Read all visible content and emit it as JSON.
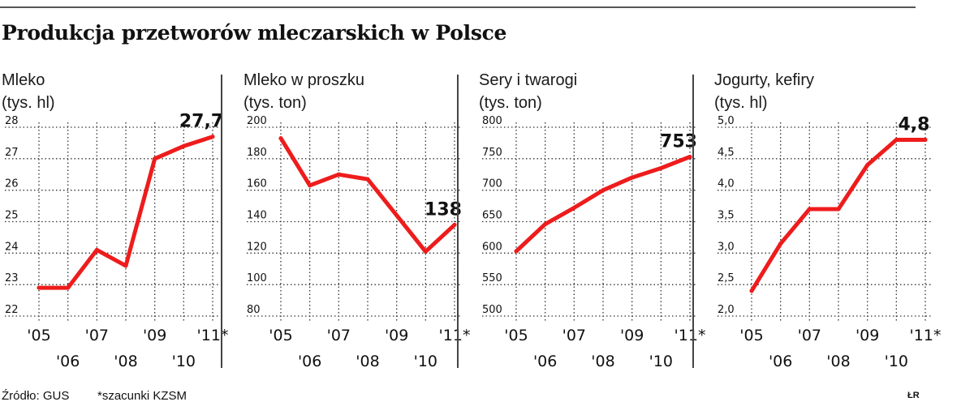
{
  "title": "Produkcja przetworów mleczarskich w Polsce",
  "footer": {
    "source": "Źródło: GUS",
    "note": "*szacunki KZSM",
    "credit": "ŁR"
  },
  "colors": {
    "line": "#ee1c1c",
    "text": "#111111",
    "grid": "#333333"
  },
  "chart_data": [
    {
      "type": "line",
      "title": "Mleko",
      "unit": "(tys. hl)",
      "x": [
        "'05",
        "'06",
        "'07",
        "'08",
        "'09",
        "'10",
        "'11*"
      ],
      "values": [
        22.9,
        22.9,
        24.1,
        23.6,
        27.0,
        27.4,
        27.7
      ],
      "ylim": [
        22,
        28
      ],
      "yticks": [
        "22",
        "23",
        "24",
        "25",
        "26",
        "27",
        "28"
      ],
      "value_label": "27,7",
      "grid": "dotted horizontal"
    },
    {
      "type": "line",
      "title": "Mleko w proszku",
      "unit": "(tys. ton)",
      "x": [
        "'05",
        "'06",
        "'07",
        "'08",
        "'09",
        "'10",
        "'11*"
      ],
      "values": [
        193,
        163,
        170,
        167,
        144,
        121,
        138
      ],
      "ylim": [
        80,
        200
      ],
      "yticks": [
        "80",
        "100",
        "120",
        "140",
        "160",
        "180",
        "200"
      ],
      "value_label": "138",
      "grid": "dotted horizontal"
    },
    {
      "type": "line",
      "title": "Sery i twarogi",
      "unit": "(tys. ton)",
      "x": [
        "'05",
        "'06",
        "'07",
        "'08",
        "'09",
        "'10",
        "'11*"
      ],
      "values": [
        603,
        646,
        672,
        700,
        720,
        735,
        753
      ],
      "ylim": [
        500,
        800
      ],
      "yticks": [
        "500",
        "550",
        "600",
        "650",
        "700",
        "750",
        "800"
      ],
      "value_label": "753",
      "grid": "dotted horizontal"
    },
    {
      "type": "line",
      "title": "Jogurty, kefiry",
      "unit": "(tys. hl)",
      "x": [
        "'05",
        "'06",
        "'07",
        "'08",
        "'09",
        "'10",
        "'11*"
      ],
      "values": [
        2.4,
        3.15,
        3.7,
        3.7,
        4.4,
        4.8,
        4.8
      ],
      "ylim": [
        2.0,
        5.0
      ],
      "yticks": [
        "2,0",
        "2,5",
        "3,0",
        "3,5",
        "4,0",
        "4,5",
        "5,0"
      ],
      "value_label": "4,8",
      "grid": "dotted horizontal"
    }
  ]
}
